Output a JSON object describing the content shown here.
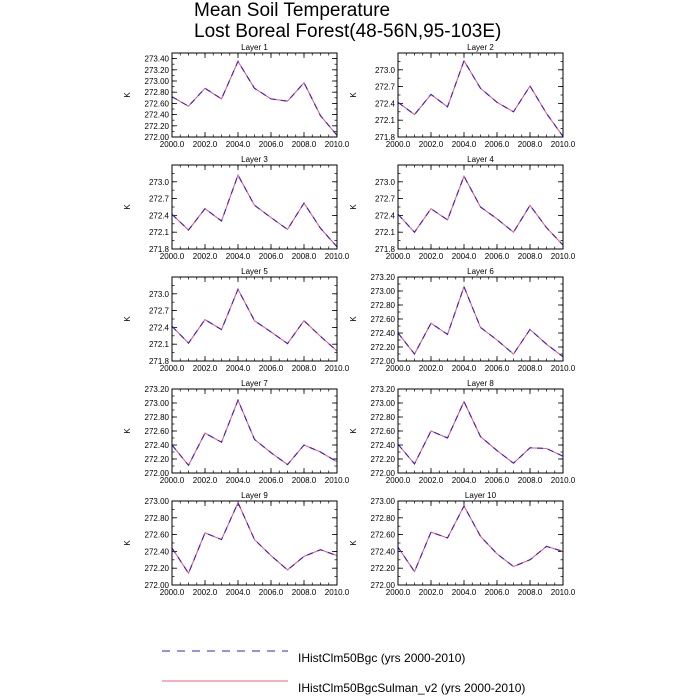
{
  "title": [
    "Mean Soil Temperature",
    "Lost Boreal Forest(48-56N,95-103E)"
  ],
  "legend": [
    {
      "name": "IHistClm50Bgc (yrs 2000-2010)",
      "color": "#3a1fd1",
      "style": "dashed"
    },
    {
      "name": "IHistClm50BgcSulman_v2 (yrs 2000-2010)",
      "color": "#e8617a",
      "style": "solid"
    }
  ],
  "colors": {
    "series_a": "#3a1fd1",
    "series_b": "#e8617a"
  },
  "chart_data": [
    {
      "type": "line",
      "title": "Layer 1",
      "ylabel": "K",
      "xlim": [
        2000,
        2010
      ],
      "ylim": [
        272.0,
        273.5
      ],
      "yticks": [
        "272.00",
        "272.20",
        "272.40",
        "272.60",
        "272.80",
        "273.00",
        "273.20",
        "273.40"
      ],
      "ytick_values": [
        272.0,
        272.2,
        272.4,
        272.6,
        272.8,
        273.0,
        273.2,
        273.4
      ],
      "xticks": [
        "2000.0",
        "2002.0",
        "2004.0",
        "2006.0",
        "2008.0",
        "2010.0"
      ],
      "x": [
        2000,
        2001,
        2002,
        2003,
        2004,
        2005,
        2006,
        2007,
        2008,
        2009,
        2010
      ],
      "series": [
        {
          "name": "IHistClm50Bgc (yrs 2000-2010)",
          "values": [
            272.72,
            272.55,
            272.87,
            272.68,
            273.35,
            272.87,
            272.68,
            272.64,
            272.97,
            272.38,
            272.03
          ]
        },
        {
          "name": "IHistClm50BgcSulman_v2 (yrs 2000-2010)",
          "values": [
            272.72,
            272.55,
            272.87,
            272.68,
            273.35,
            272.87,
            272.68,
            272.64,
            272.97,
            272.38,
            272.03
          ]
        }
      ]
    },
    {
      "type": "line",
      "title": "Layer 2",
      "ylabel": "K",
      "xlim": [
        2000,
        2010
      ],
      "ylim": [
        271.8,
        273.3
      ],
      "yticks": [
        "271.8",
        "272.1",
        "272.4",
        "272.7",
        "273.0"
      ],
      "ytick_values": [
        271.8,
        272.1,
        272.4,
        272.7,
        273.0
      ],
      "xticks": [
        "2000.0",
        "2002.0",
        "2004.0",
        "2006.0",
        "2008.0",
        "2010.0"
      ],
      "x": [
        2000,
        2001,
        2002,
        2003,
        2004,
        2005,
        2006,
        2007,
        2008,
        2009,
        2010
      ],
      "series": [
        {
          "name": "IHistClm50Bgc (yrs 2000-2010)",
          "values": [
            272.42,
            272.2,
            272.56,
            272.34,
            273.16,
            272.67,
            272.42,
            272.25,
            272.71,
            272.22,
            271.81
          ]
        },
        {
          "name": "IHistClm50BgcSulman_v2 (yrs 2000-2010)",
          "values": [
            272.42,
            272.2,
            272.56,
            272.34,
            273.16,
            272.67,
            272.42,
            272.25,
            272.71,
            272.22,
            271.81
          ]
        }
      ]
    },
    {
      "type": "line",
      "title": "Layer 3",
      "ylabel": "K",
      "xlim": [
        2000,
        2010
      ],
      "ylim": [
        271.8,
        273.3
      ],
      "yticks": [
        "271.8",
        "272.1",
        "272.4",
        "272.7",
        "273.0"
      ],
      "ytick_values": [
        271.8,
        272.1,
        272.4,
        272.7,
        273.0
      ],
      "xticks": [
        "2000.0",
        "2002.0",
        "2004.0",
        "2006.0",
        "2008.0",
        "2010.0"
      ],
      "x": [
        2000,
        2001,
        2002,
        2003,
        2004,
        2005,
        2006,
        2007,
        2008,
        2009,
        2010
      ],
      "series": [
        {
          "name": "IHistClm50Bgc (yrs 2000-2010)",
          "values": [
            272.42,
            272.14,
            272.52,
            272.3,
            273.12,
            272.58,
            272.36,
            272.15,
            272.62,
            272.17,
            271.84
          ]
        },
        {
          "name": "IHistClm50BgcSulman_v2 (yrs 2000-2010)",
          "values": [
            272.42,
            272.14,
            272.52,
            272.3,
            273.12,
            272.58,
            272.36,
            272.15,
            272.62,
            272.17,
            271.84
          ]
        }
      ]
    },
    {
      "type": "line",
      "title": "Layer 4",
      "ylabel": "K",
      "xlim": [
        2000,
        2010
      ],
      "ylim": [
        271.8,
        273.3
      ],
      "yticks": [
        "271.8",
        "272.1",
        "272.4",
        "272.7",
        "273.0"
      ],
      "ytick_values": [
        271.8,
        272.1,
        272.4,
        272.7,
        273.0
      ],
      "xticks": [
        "2000.0",
        "2002.0",
        "2004.0",
        "2006.0",
        "2008.0",
        "2010.0"
      ],
      "x": [
        2000,
        2001,
        2002,
        2003,
        2004,
        2005,
        2006,
        2007,
        2008,
        2009,
        2010
      ],
      "series": [
        {
          "name": "IHistClm50Bgc (yrs 2000-2010)",
          "values": [
            272.42,
            272.1,
            272.52,
            272.32,
            273.1,
            272.55,
            272.34,
            272.1,
            272.58,
            272.18,
            271.87
          ]
        },
        {
          "name": "IHistClm50BgcSulman_v2 (yrs 2000-2010)",
          "values": [
            272.42,
            272.1,
            272.52,
            272.32,
            273.1,
            272.55,
            272.34,
            272.1,
            272.58,
            272.18,
            271.87
          ]
        }
      ]
    },
    {
      "type": "line",
      "title": "Layer 5",
      "ylabel": "K",
      "xlim": [
        2000,
        2010
      ],
      "ylim": [
        271.8,
        273.3
      ],
      "yticks": [
        "271.8",
        "272.1",
        "272.4",
        "272.7",
        "273.0"
      ],
      "ytick_values": [
        271.8,
        272.1,
        272.4,
        272.7,
        273.0
      ],
      "xticks": [
        "2000.0",
        "2002.0",
        "2004.0",
        "2006.0",
        "2008.0",
        "2010.0"
      ],
      "x": [
        2000,
        2001,
        2002,
        2003,
        2004,
        2005,
        2006,
        2007,
        2008,
        2009,
        2010
      ],
      "series": [
        {
          "name": "IHistClm50Bgc (yrs 2000-2010)",
          "values": [
            272.42,
            272.12,
            272.54,
            272.36,
            273.08,
            272.52,
            272.32,
            272.11,
            272.52,
            272.24,
            271.98
          ]
        },
        {
          "name": "IHistClm50BgcSulman_v2 (yrs 2000-2010)",
          "values": [
            272.42,
            272.12,
            272.54,
            272.36,
            273.08,
            272.52,
            272.32,
            272.11,
            272.52,
            272.24,
            271.98
          ]
        }
      ]
    },
    {
      "type": "line",
      "title": "Layer 6",
      "ylabel": "K",
      "xlim": [
        2000,
        2010
      ],
      "ylim": [
        272.0,
        273.2
      ],
      "yticks": [
        "272.00",
        "272.20",
        "272.40",
        "272.60",
        "272.80",
        "273.00",
        "273.20"
      ],
      "ytick_values": [
        272.0,
        272.2,
        272.4,
        272.6,
        272.8,
        273.0,
        273.2
      ],
      "xticks": [
        "2000.0",
        "2002.0",
        "2004.0",
        "2006.0",
        "2008.0",
        "2010.0"
      ],
      "x": [
        2000,
        2001,
        2002,
        2003,
        2004,
        2005,
        2006,
        2007,
        2008,
        2009,
        2010
      ],
      "series": [
        {
          "name": "IHistClm50Bgc (yrs 2000-2010)",
          "values": [
            272.4,
            272.1,
            272.54,
            272.38,
            273.06,
            272.48,
            272.3,
            272.1,
            272.45,
            272.24,
            272.06
          ]
        },
        {
          "name": "IHistClm50BgcSulman_v2 (yrs 2000-2010)",
          "values": [
            272.4,
            272.1,
            272.54,
            272.38,
            273.06,
            272.48,
            272.3,
            272.1,
            272.45,
            272.24,
            272.06
          ]
        }
      ]
    },
    {
      "type": "line",
      "title": "Layer 7",
      "ylabel": "K",
      "xlim": [
        2000,
        2010
      ],
      "ylim": [
        272.0,
        273.2
      ],
      "yticks": [
        "272.00",
        "272.20",
        "272.40",
        "272.60",
        "272.80",
        "273.00",
        "273.20"
      ],
      "ytick_values": [
        272.0,
        272.2,
        272.4,
        272.6,
        272.8,
        273.0,
        273.2
      ],
      "xticks": [
        "2000.0",
        "2002.0",
        "2004.0",
        "2006.0",
        "2008.0",
        "2010.0"
      ],
      "x": [
        2000,
        2001,
        2002,
        2003,
        2004,
        2005,
        2006,
        2007,
        2008,
        2009,
        2010
      ],
      "series": [
        {
          "name": "IHistClm50Bgc (yrs 2000-2010)",
          "values": [
            272.4,
            272.11,
            272.57,
            272.44,
            273.04,
            272.48,
            272.29,
            272.12,
            272.4,
            272.3,
            272.16
          ]
        },
        {
          "name": "IHistClm50BgcSulman_v2 (yrs 2000-2010)",
          "values": [
            272.4,
            272.11,
            272.57,
            272.44,
            273.04,
            272.48,
            272.29,
            272.12,
            272.4,
            272.3,
            272.16
          ]
        }
      ]
    },
    {
      "type": "line",
      "title": "Layer 8",
      "ylabel": "K",
      "xlim": [
        2000,
        2010
      ],
      "ylim": [
        272.0,
        273.2
      ],
      "yticks": [
        "272.00",
        "272.20",
        "272.40",
        "272.60",
        "272.80",
        "273.00",
        "273.20"
      ],
      "ytick_values": [
        272.0,
        272.2,
        272.4,
        272.6,
        272.8,
        273.0,
        273.2
      ],
      "xticks": [
        "2000.0",
        "2002.0",
        "2004.0",
        "2006.0",
        "2008.0",
        "2010.0"
      ],
      "x": [
        2000,
        2001,
        2002,
        2003,
        2004,
        2005,
        2006,
        2007,
        2008,
        2009,
        2010
      ],
      "series": [
        {
          "name": "IHistClm50Bgc (yrs 2000-2010)",
          "values": [
            272.41,
            272.13,
            272.6,
            272.5,
            273.02,
            272.52,
            272.32,
            272.14,
            272.36,
            272.35,
            272.24
          ]
        },
        {
          "name": "IHistClm50BgcSulman_v2 (yrs 2000-2010)",
          "values": [
            272.41,
            272.13,
            272.6,
            272.5,
            273.02,
            272.52,
            272.32,
            272.14,
            272.36,
            272.35,
            272.24
          ]
        }
      ]
    },
    {
      "type": "line",
      "title": "Layer 9",
      "ylabel": "K",
      "xlim": [
        2000,
        2010
      ],
      "ylim": [
        272.0,
        273.0
      ],
      "yticks": [
        "272.00",
        "272.20",
        "272.40",
        "272.60",
        "272.80",
        "273.00"
      ],
      "ytick_values": [
        272.0,
        272.2,
        272.4,
        272.6,
        272.8,
        273.0
      ],
      "xticks": [
        "2000.0",
        "2002.0",
        "2004.0",
        "2006.0",
        "2008.0",
        "2010.0"
      ],
      "x": [
        2000,
        2001,
        2002,
        2003,
        2004,
        2005,
        2006,
        2007,
        2008,
        2009,
        2010
      ],
      "series": [
        {
          "name": "IHistClm50Bgc (yrs 2000-2010)",
          "values": [
            272.44,
            272.14,
            272.62,
            272.54,
            272.98,
            272.54,
            272.35,
            272.18,
            272.34,
            272.42,
            272.35
          ]
        },
        {
          "name": "IHistClm50BgcSulman_v2 (yrs 2000-2010)",
          "values": [
            272.44,
            272.14,
            272.62,
            272.54,
            272.98,
            272.54,
            272.35,
            272.18,
            272.34,
            272.42,
            272.35
          ]
        }
      ]
    },
    {
      "type": "line",
      "title": "Layer 10",
      "ylabel": "K",
      "xlim": [
        2000,
        2010
      ],
      "ylim": [
        272.0,
        273.0
      ],
      "yticks": [
        "272.00",
        "272.20",
        "272.40",
        "272.60",
        "272.80",
        "273.00"
      ],
      "ytick_values": [
        272.0,
        272.2,
        272.4,
        272.6,
        272.8,
        273.0
      ],
      "xticks": [
        "2000.0",
        "2002.0",
        "2004.0",
        "2006.0",
        "2008.0",
        "2010.0"
      ],
      "x": [
        2000,
        2001,
        2002,
        2003,
        2004,
        2005,
        2006,
        2007,
        2008,
        2009,
        2010
      ],
      "series": [
        {
          "name": "IHistClm50Bgc (yrs 2000-2010)",
          "values": [
            272.45,
            272.16,
            272.63,
            272.56,
            272.94,
            272.58,
            272.37,
            272.22,
            272.3,
            272.46,
            272.4
          ]
        },
        {
          "name": "IHistClm50BgcSulman_v2 (yrs 2000-2010)",
          "values": [
            272.45,
            272.16,
            272.63,
            272.56,
            272.94,
            272.58,
            272.37,
            272.22,
            272.3,
            272.46,
            272.4
          ]
        }
      ]
    }
  ]
}
